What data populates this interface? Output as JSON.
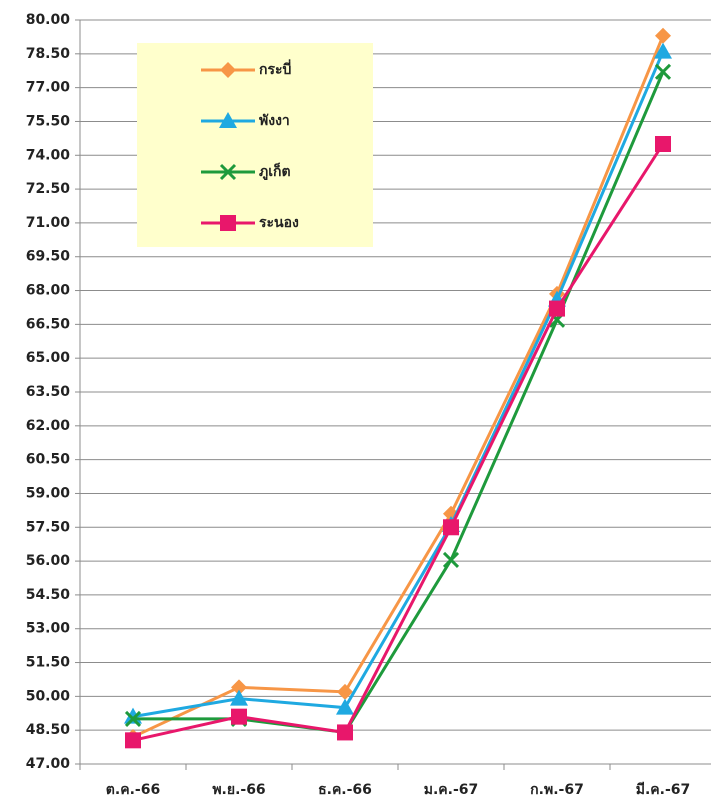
{
  "chart_data": {
    "type": "line",
    "categories": [
      "ต.ค.-66",
      "พ.ย.-66",
      "ธ.ค.-66",
      "ม.ค.-67",
      "ก.พ.-67",
      "มี.ค.-67"
    ],
    "series": [
      {
        "name": "กระบี่",
        "color": "#f79646",
        "marker": "diamond",
        "values": [
          48.2,
          50.4,
          50.2,
          58.1,
          67.85,
          79.3
        ]
      },
      {
        "name": "พังงา",
        "color": "#1fa9e1",
        "marker": "triangle",
        "values": [
          49.1,
          49.9,
          49.5,
          57.6,
          67.6,
          78.6
        ]
      },
      {
        "name": "ภูเก็ต",
        "color": "#1e9a3c",
        "marker": "x",
        "values": [
          49.0,
          49.0,
          48.4,
          56.05,
          66.7,
          77.7
        ]
      },
      {
        "name": "ระนอง",
        "color": "#e8176b",
        "marker": "square",
        "values": [
          48.05,
          49.1,
          48.4,
          57.5,
          67.2,
          74.5
        ]
      }
    ],
    "ylim": [
      47,
      80
    ],
    "yticks": [
      {
        "value": 47,
        "label": "47.00"
      },
      {
        "value": 48.5,
        "label": "48.50"
      },
      {
        "value": 50,
        "label": "50.00"
      },
      {
        "value": 51.5,
        "label": "51.50"
      },
      {
        "value": 53,
        "label": "53.00"
      },
      {
        "value": 54.5,
        "label": "54.50"
      },
      {
        "value": 56,
        "label": "56.00"
      },
      {
        "value": 57.5,
        "label": "57.50"
      },
      {
        "value": 59,
        "label": "59.00"
      },
      {
        "value": 60.5,
        "label": "60.50"
      },
      {
        "value": 62,
        "label": "62.00"
      },
      {
        "value": 63.5,
        "label": "63.50"
      },
      {
        "value": 65,
        "label": "65.00"
      },
      {
        "value": 66.5,
        "label": "66.50"
      },
      {
        "value": 68,
        "label": "68.00"
      },
      {
        "value": 69.5,
        "label": "69.50"
      },
      {
        "value": 71,
        "label": "71.00"
      },
      {
        "value": 72.5,
        "label": "72.50"
      },
      {
        "value": 74,
        "label": "74.00"
      },
      {
        "value": 75.5,
        "label": "75.50"
      },
      {
        "value": 77,
        "label": "77.00"
      },
      {
        "value": 78.5,
        "label": "78.50"
      },
      {
        "value": 80,
        "label": "80.00"
      }
    ],
    "grid": true,
    "legend": "top-left",
    "legend_background": "#ffffcc"
  }
}
